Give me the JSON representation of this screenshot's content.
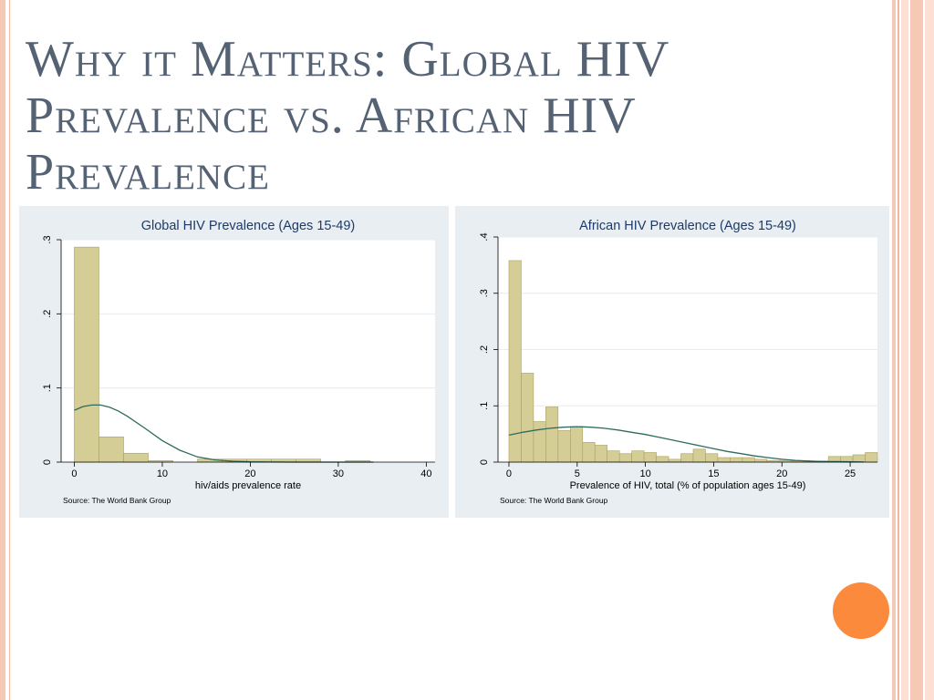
{
  "slide": {
    "title": "Why it Matters: Global HIV Prevalence vs. African HIV Prevalence"
  },
  "colors": {
    "bar_fill": "#d5cd96",
    "bar_stroke": "#a8a060",
    "curve": "#2e6b5e",
    "panel_bg": "#e8eef1",
    "plot_bg": "#ffffff",
    "title_text": "#546274",
    "accent_dot": "#fb8a3c",
    "stripe_light": "#fde0d3",
    "stripe_mid": "#f7c9b5",
    "stripe_dark": "#f2b79e"
  },
  "chart_data": [
    {
      "type": "bar",
      "title": "Global HIV Prevalence (Ages 15-49)",
      "xlabel": "hiv/aids prevalence rate",
      "ylabel": "",
      "source": "Source:  The World Bank Group",
      "xlim": [
        -1.5,
        41
      ],
      "ylim": [
        0,
        0.3
      ],
      "xticks": [
        0,
        10,
        20,
        30,
        40
      ],
      "xtick_labels": [
        "0",
        "10",
        "20",
        "30",
        "40"
      ],
      "yticks": [
        0,
        0.1,
        0.2,
        0.3
      ],
      "ytick_labels": [
        "0",
        ".1",
        ".2",
        ".3"
      ],
      "grid": true,
      "bins": [
        {
          "x0": 0,
          "x1": 2.8,
          "value": 0.29
        },
        {
          "x0": 2.8,
          "x1": 5.6,
          "value": 0.034
        },
        {
          "x0": 5.6,
          "x1": 8.4,
          "value": 0.012
        },
        {
          "x0": 8.4,
          "x1": 11.2,
          "value": 0.002
        },
        {
          "x0": 11.2,
          "x1": 14.0,
          "value": 0.0
        },
        {
          "x0": 14.0,
          "x1": 16.8,
          "value": 0.004
        },
        {
          "x0": 16.8,
          "x1": 19.6,
          "value": 0.004
        },
        {
          "x0": 19.6,
          "x1": 22.4,
          "value": 0.004
        },
        {
          "x0": 22.4,
          "x1": 25.2,
          "value": 0.004
        },
        {
          "x0": 25.2,
          "x1": 28.0,
          "value": 0.004
        },
        {
          "x0": 28.0,
          "x1": 30.8,
          "value": 0.0
        },
        {
          "x0": 30.8,
          "x1": 33.6,
          "value": 0.002
        }
      ],
      "density_curve": {
        "x": [
          0,
          1,
          2,
          3,
          4,
          5,
          6,
          8,
          10,
          12,
          14,
          16,
          18,
          20,
          22,
          25,
          28,
          31,
          34
        ],
        "y": [
          0.07,
          0.075,
          0.077,
          0.077,
          0.074,
          0.069,
          0.062,
          0.046,
          0.029,
          0.016,
          0.007,
          0.003,
          0.0012,
          0.0004,
          0.0001,
          0,
          0,
          0,
          0
        ]
      }
    },
    {
      "type": "bar",
      "title": "African HIV Prevalence (Ages 15-49)",
      "xlabel": "Prevalence of HIV, total (% of population ages 15-49)",
      "ylabel": "",
      "source": "Source:  The World Bank Group",
      "xlim": [
        -0.8,
        27
      ],
      "ylim": [
        0,
        0.4
      ],
      "xticks": [
        0,
        5,
        10,
        15,
        20,
        25
      ],
      "xtick_labels": [
        "0",
        "5",
        "10",
        "15",
        "20",
        "25"
      ],
      "yticks": [
        0,
        0.1,
        0.2,
        0.3,
        0.4
      ],
      "ytick_labels": [
        "0",
        ".1",
        ".2",
        ".3",
        ".4"
      ],
      "grid": true,
      "bins": [
        {
          "x0": 0.0,
          "x1": 0.9,
          "value": 0.358
        },
        {
          "x0": 0.9,
          "x1": 1.8,
          "value": 0.158
        },
        {
          "x0": 1.8,
          "x1": 2.7,
          "value": 0.072
        },
        {
          "x0": 2.7,
          "x1": 3.6,
          "value": 0.098
        },
        {
          "x0": 3.6,
          "x1": 4.5,
          "value": 0.056
        },
        {
          "x0": 4.5,
          "x1": 5.4,
          "value": 0.063
        },
        {
          "x0": 5.4,
          "x1": 6.3,
          "value": 0.035
        },
        {
          "x0": 6.3,
          "x1": 7.2,
          "value": 0.03
        },
        {
          "x0": 7.2,
          "x1": 8.1,
          "value": 0.02
        },
        {
          "x0": 8.1,
          "x1": 9.0,
          "value": 0.015
        },
        {
          "x0": 9.0,
          "x1": 9.9,
          "value": 0.02
        },
        {
          "x0": 9.9,
          "x1": 10.8,
          "value": 0.017
        },
        {
          "x0": 10.8,
          "x1": 11.7,
          "value": 0.01
        },
        {
          "x0": 11.7,
          "x1": 12.6,
          "value": 0.005
        },
        {
          "x0": 12.6,
          "x1": 13.5,
          "value": 0.015
        },
        {
          "x0": 13.5,
          "x1": 14.4,
          "value": 0.023
        },
        {
          "x0": 14.4,
          "x1": 15.3,
          "value": 0.015
        },
        {
          "x0": 15.3,
          "x1": 16.2,
          "value": 0.008
        },
        {
          "x0": 16.2,
          "x1": 17.1,
          "value": 0.008
        },
        {
          "x0": 17.1,
          "x1": 18.0,
          "value": 0.008
        },
        {
          "x0": 18.0,
          "x1": 18.9,
          "value": 0.005
        },
        {
          "x0": 18.9,
          "x1": 19.8,
          "value": 0.003
        },
        {
          "x0": 19.8,
          "x1": 20.7,
          "value": 0.003
        },
        {
          "x0": 20.7,
          "x1": 21.6,
          "value": 0.002
        },
        {
          "x0": 21.6,
          "x1": 22.5,
          "value": 0.002
        },
        {
          "x0": 22.5,
          "x1": 23.4,
          "value": 0.002
        },
        {
          "x0": 23.4,
          "x1": 24.3,
          "value": 0.01
        },
        {
          "x0": 24.3,
          "x1": 25.2,
          "value": 0.01
        },
        {
          "x0": 25.2,
          "x1": 26.1,
          "value": 0.013
        },
        {
          "x0": 26.1,
          "x1": 27.0,
          "value": 0.017
        }
      ],
      "density_curve": {
        "x": [
          0,
          1,
          2,
          3,
          4,
          5,
          6,
          7,
          8,
          9,
          10,
          11,
          12,
          13,
          14,
          15,
          16,
          17,
          18,
          19,
          20,
          21,
          22,
          23,
          24,
          25,
          26
        ],
        "y": [
          0.048,
          0.053,
          0.057,
          0.06,
          0.062,
          0.063,
          0.062,
          0.06,
          0.057,
          0.053,
          0.049,
          0.044,
          0.039,
          0.034,
          0.029,
          0.024,
          0.019,
          0.015,
          0.011,
          0.008,
          0.005,
          0.003,
          0.002,
          0.001,
          0.001,
          0.0005,
          0.0002
        ]
      }
    }
  ]
}
